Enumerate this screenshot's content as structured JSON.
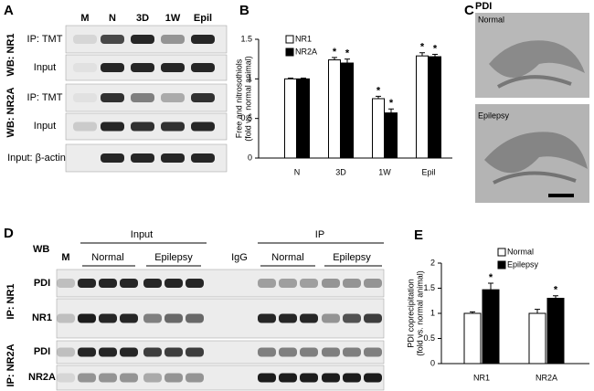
{
  "panel_a": {
    "letter": "A",
    "lanes": [
      "M",
      "N",
      "3D",
      "1W",
      "Epil"
    ],
    "groups": [
      "WB: NR1",
      "WB: NR2A"
    ],
    "rows": [
      "IP: TMT",
      "Input",
      "IP: TMT",
      "Input",
      "Input: β-actin"
    ]
  },
  "panel_c": {
    "letter": "C",
    "title": "PDI",
    "images": [
      "Normal",
      "Epilepsy"
    ]
  },
  "panel_d": {
    "letter": "D",
    "wb": "WB",
    "marker": "M",
    "input": "Input",
    "input_groups": [
      "Normal",
      "Epilepsy"
    ],
    "igg": "IgG",
    "ip": "IP",
    "ip_groups": [
      "Normal",
      "Epilepsy"
    ],
    "groups": [
      "IP: NR1",
      "IP: NR2A"
    ],
    "rows": [
      "PDI",
      "NR1",
      "PDI",
      "NR2A"
    ]
  },
  "chart_data": [
    {
      "type": "bar",
      "panel_label": "B",
      "y_label": [
        "Free and nitrosothiols",
        "(fold vs. normal animal)"
      ],
      "categories": [
        "N",
        "3D",
        "1W",
        "Epil"
      ],
      "series": [
        {
          "name": "NR1",
          "color": "#ffffff",
          "values": [
            1.0,
            1.24,
            0.75,
            1.29
          ],
          "errors": [
            0.01,
            0.03,
            0.03,
            0.04
          ],
          "markers": [
            null,
            "*",
            "*",
            "*"
          ]
        },
        {
          "name": "NR2A",
          "color": "#000000",
          "values": [
            1.0,
            1.2,
            0.57,
            1.28
          ],
          "errors": [
            0.01,
            0.05,
            0.05,
            0.03
          ],
          "markers": [
            null,
            "*",
            "*",
            "*"
          ]
        }
      ],
      "ylim": [
        0,
        1.5
      ],
      "yticks": [
        0,
        0.5,
        1,
        1.5
      ],
      "grid": false
    },
    {
      "type": "bar",
      "panel_label": "E",
      "y_label": [
        "PDI coprecipitation",
        "(fold vs. normal animal)"
      ],
      "categories": [
        "NR1",
        "NR2A"
      ],
      "series": [
        {
          "name": "Normal",
          "color": "#ffffff",
          "values": [
            1.0,
            1.0
          ],
          "errors": [
            0.03,
            0.08
          ],
          "markers": [
            null,
            null
          ]
        },
        {
          "name": "Epilepsy",
          "color": "#000000",
          "values": [
            1.47,
            1.3
          ],
          "errors": [
            0.13,
            0.05
          ],
          "markers": [
            "*",
            "*"
          ]
        }
      ],
      "ylim": [
        0,
        2
      ],
      "yticks": [
        0,
        0.5,
        1,
        1.5,
        2
      ],
      "grid": false
    }
  ]
}
